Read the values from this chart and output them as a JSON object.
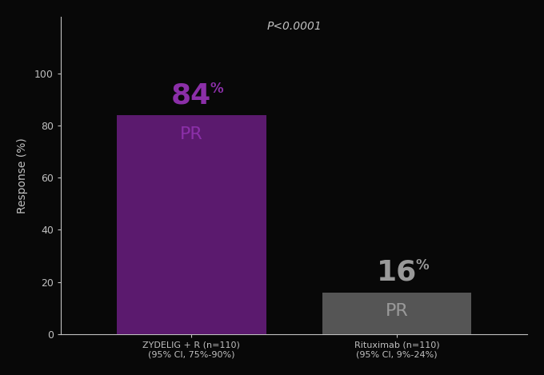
{
  "categories": [
    "ZYDELIG + R (n=110)\n(95% CI, 75%-90%)",
    "Rituximab (n=110)\n(95% CI, 9%-24%)"
  ],
  "values": [
    84,
    16
  ],
  "bar_colors": [
    "#5B1A6E",
    "#555555"
  ],
  "bar_width": 0.32,
  "bar_positions": [
    0.28,
    0.72
  ],
  "ylabel": "Response (%)",
  "ylim": [
    0,
    122
  ],
  "yticks": [
    0,
    20,
    40,
    60,
    80,
    100
  ],
  "xlim": [
    0.0,
    1.0
  ],
  "background_color": "#080808",
  "text_color": "#c0c0c0",
  "pvalue_text": "P<0.0001",
  "pvalue_x": 0.5,
  "pvalue_y": 116,
  "bar1_label_value": "84",
  "bar1_label_unit": "%",
  "bar1_label_sub": "PR",
  "bar1_label_color": "#8B2FA8",
  "bar2_label_value": "16",
  "bar2_label_unit": "%",
  "bar2_label_sub": "PR",
  "bar2_label_color": "#999999",
  "ylabel_fontsize": 10,
  "tick_fontsize": 9,
  "pvalue_fontsize": 10,
  "label_value_fontsize": 26,
  "label_unit_fontsize": 12,
  "label_sub_fontsize": 16,
  "xtick_fontsize": 8
}
